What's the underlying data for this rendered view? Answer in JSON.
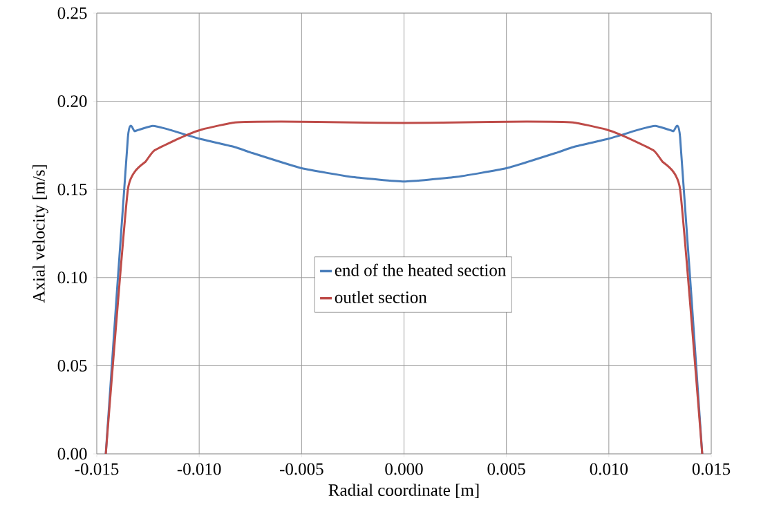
{
  "chart_data": {
    "type": "line",
    "xlabel": "Radial coordinate [m]",
    "ylabel": "Axial velocity [m/s]",
    "xlim": [
      -0.015,
      0.015
    ],
    "ylim": [
      0,
      0.25
    ],
    "xticks": [
      {
        "value": -0.015,
        "label": "-0.015"
      },
      {
        "value": -0.01,
        "label": "-0.010"
      },
      {
        "value": -0.005,
        "label": "-0.005"
      },
      {
        "value": 0,
        "label": "0.000"
      },
      {
        "value": 0.005,
        "label": "0.005"
      },
      {
        "value": 0.01,
        "label": "0.010"
      },
      {
        "value": 0.015,
        "label": "0.015"
      }
    ],
    "yticks": [
      {
        "value": 0,
        "label": "0.00"
      },
      {
        "value": 0.05,
        "label": "0.05"
      },
      {
        "value": 0.1,
        "label": "0.10"
      },
      {
        "value": 0.15,
        "label": "0.15"
      },
      {
        "value": 0.2,
        "label": "0.20"
      },
      {
        "value": 0.25,
        "label": "0.25"
      }
    ],
    "grid": true,
    "legend": "center",
    "marker": "none",
    "line_style": "solid",
    "series": [
      {
        "name": "end of the heated section",
        "color": "#4a7ebb",
        "x": [
          -0.01456,
          -0.01348,
          -0.01314,
          -0.01227,
          -0.0115,
          -0.01,
          -0.00825,
          -0.0075,
          -0.005,
          -0.0025,
          0,
          0.0025,
          0.005,
          0.0075,
          0.00825,
          0.01,
          0.0115,
          0.01227,
          0.01314,
          0.01348,
          0.01456
        ],
        "values": [
          0,
          0.1795,
          0.183,
          0.186,
          0.184,
          0.1788,
          0.174,
          0.171,
          0.162,
          0.157,
          0.1545,
          0.157,
          0.162,
          0.171,
          0.174,
          0.1788,
          0.184,
          0.186,
          0.183,
          0.1795,
          0
        ]
      },
      {
        "name": "outlet section",
        "color": "#be4b48",
        "x": [
          -0.01456,
          -0.01348,
          -0.0126,
          -0.0122,
          -0.01152,
          -0.01058,
          -0.00987,
          -0.00825,
          -0.006,
          -0.0025,
          0,
          0.0025,
          0.006,
          0.00825,
          0.00987,
          0.01058,
          0.01152,
          0.0122,
          0.0126,
          0.01348,
          0.01456
        ],
        "values": [
          0,
          0.15,
          0.166,
          0.172,
          0.176,
          0.181,
          0.184,
          0.188,
          0.1885,
          0.188,
          0.1877,
          0.188,
          0.1885,
          0.188,
          0.184,
          0.181,
          0.176,
          0.172,
          0.166,
          0.15,
          0
        ]
      }
    ]
  }
}
